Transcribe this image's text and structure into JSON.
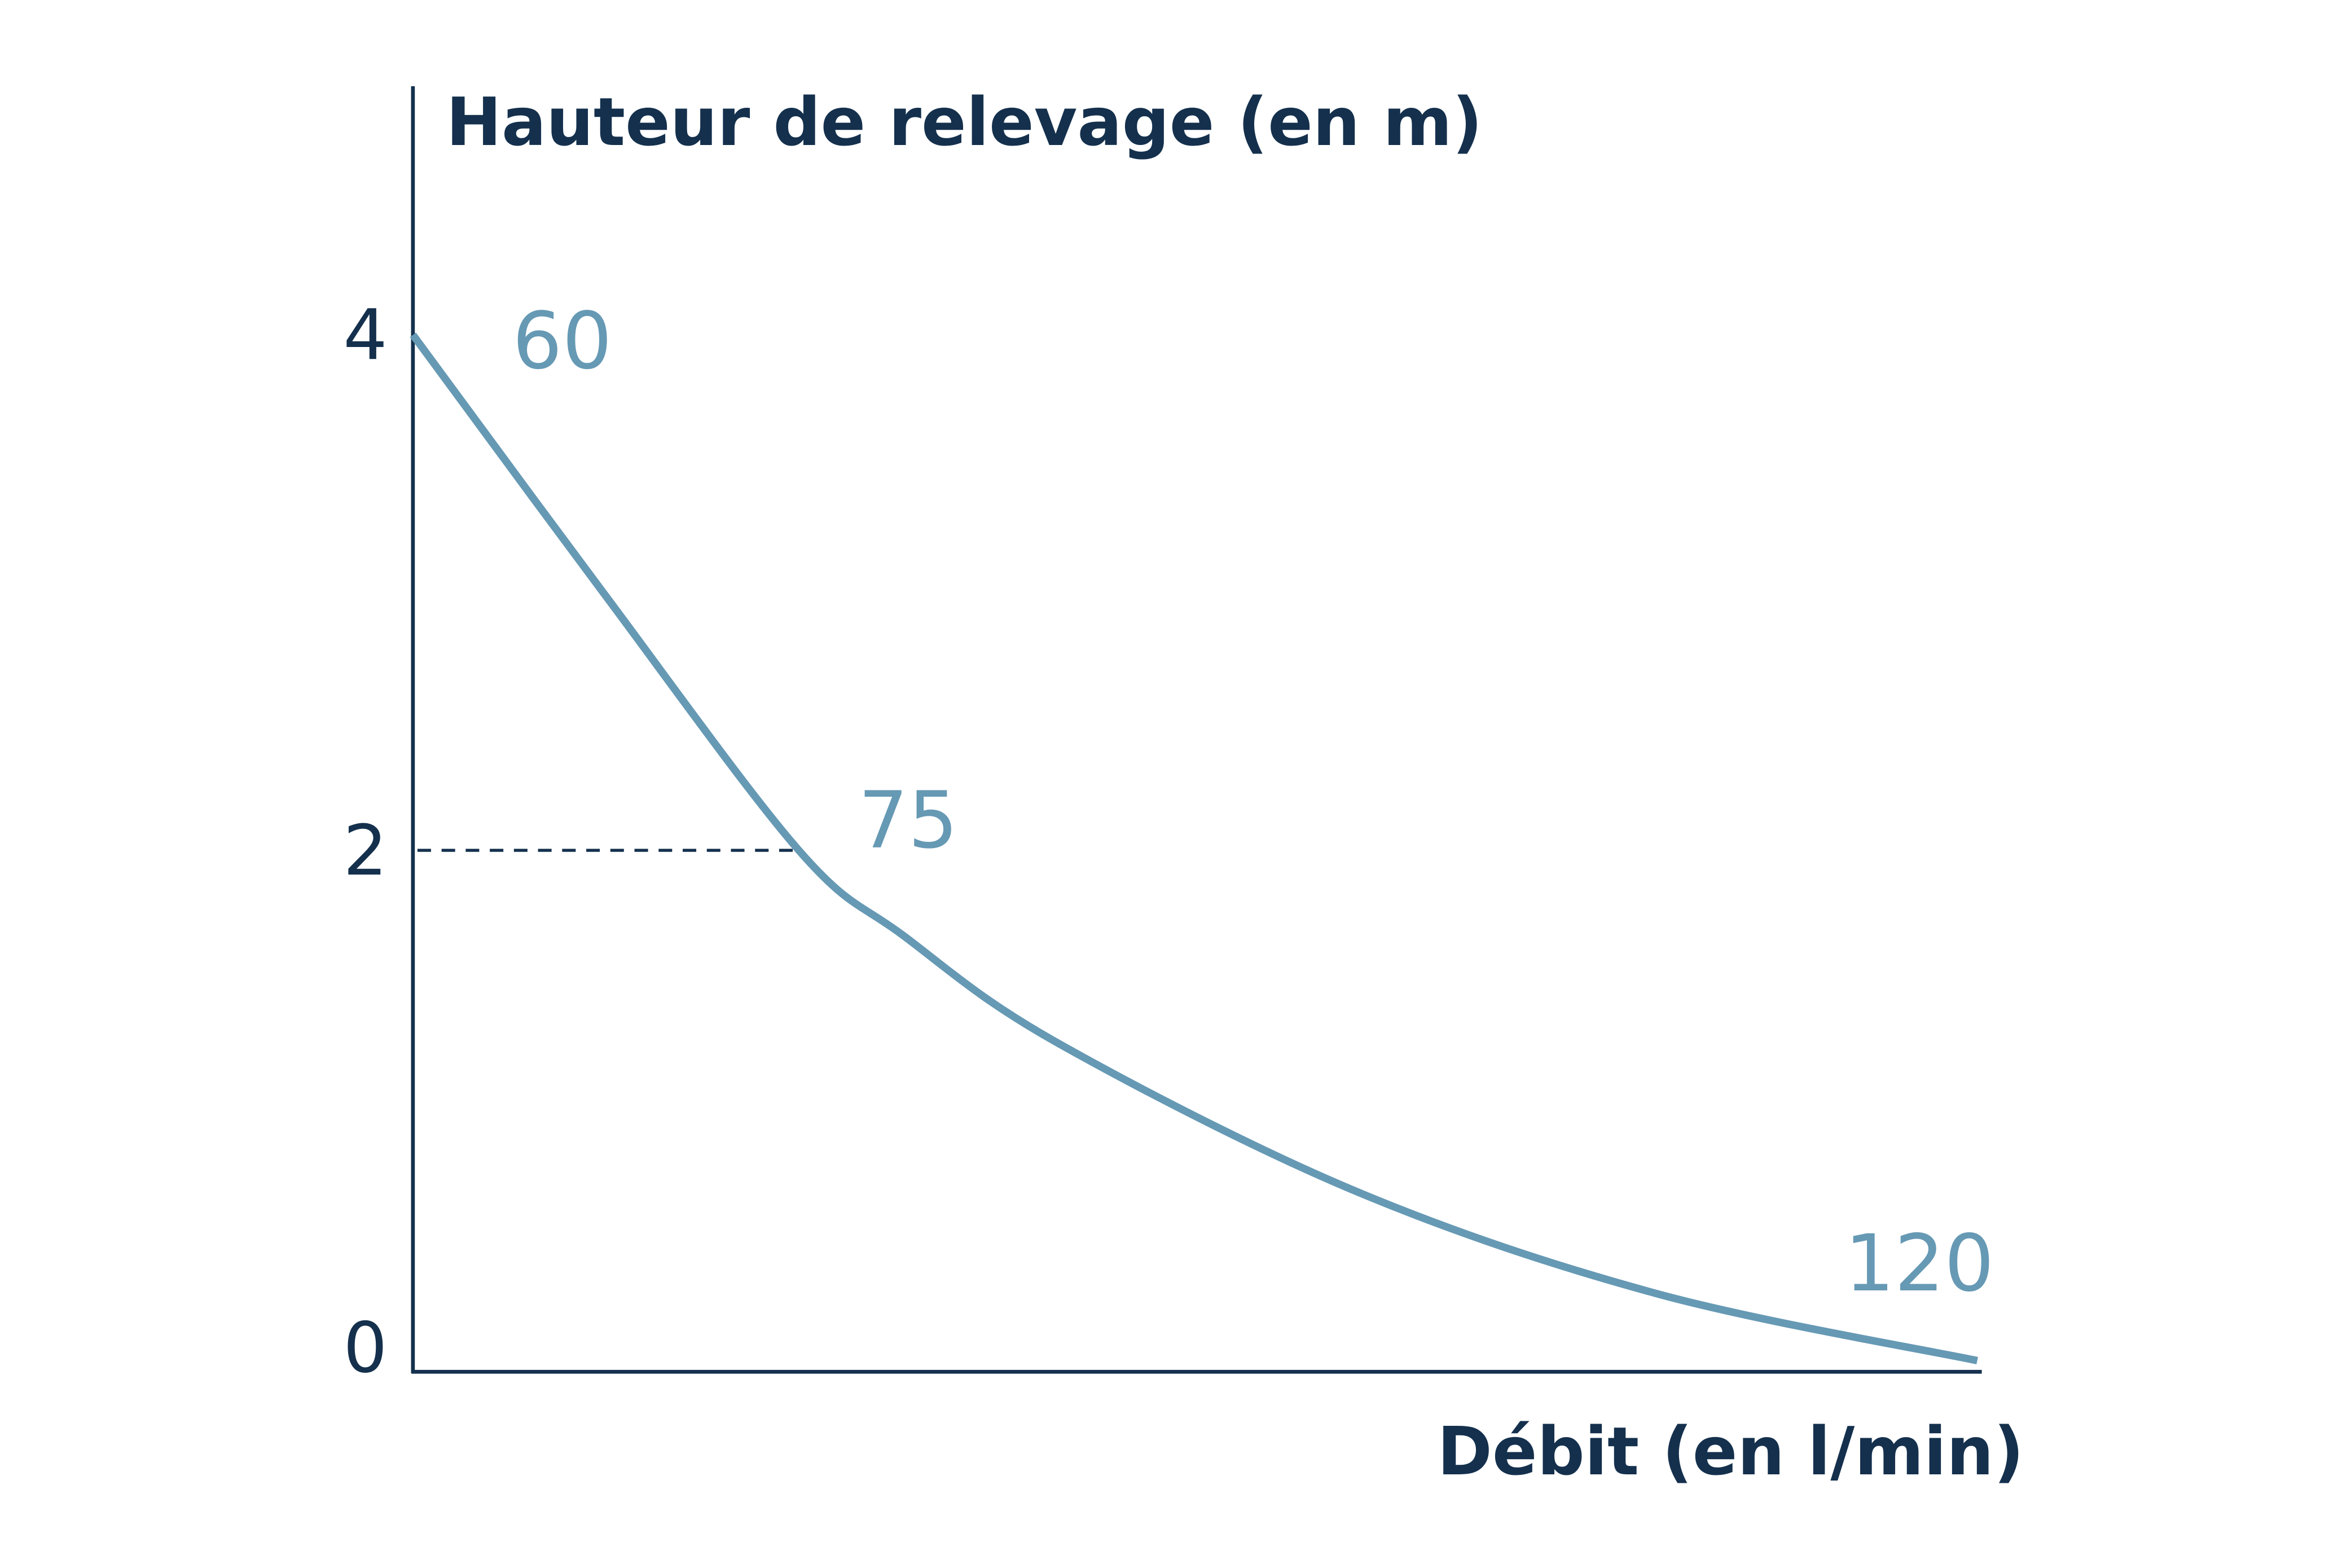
{
  "chart_data": {
    "type": "line",
    "title": "",
    "ylabel": "Hauteur de relevage (en m)",
    "xlabel": "Débit (en l/min)",
    "xlim": [
      60,
      120
    ],
    "ylim": [
      0,
      4
    ],
    "y_ticks": [
      "0",
      "2",
      "4"
    ],
    "grid": false,
    "series": [
      {
        "x": [
          60,
          67.3,
          74.8,
          78.8,
          84.6,
          96.1,
          107.7,
          120
        ],
        "y": [
          4,
          3.0,
          2.0,
          1.67,
          1.26,
          0.68,
          0.28,
          0.02
        ]
      }
    ],
    "point_labels": [
      {
        "text": "60",
        "x": 60,
        "y": 4
      },
      {
        "text": "75",
        "x": 75,
        "y": 2
      },
      {
        "text": "120",
        "x": 120,
        "y": 0
      }
    ],
    "reference_line": {
      "y": 2,
      "x_end": 75,
      "style": "dashed"
    },
    "colors": {
      "axis": "#14304d",
      "curve": "#6699b4"
    }
  }
}
